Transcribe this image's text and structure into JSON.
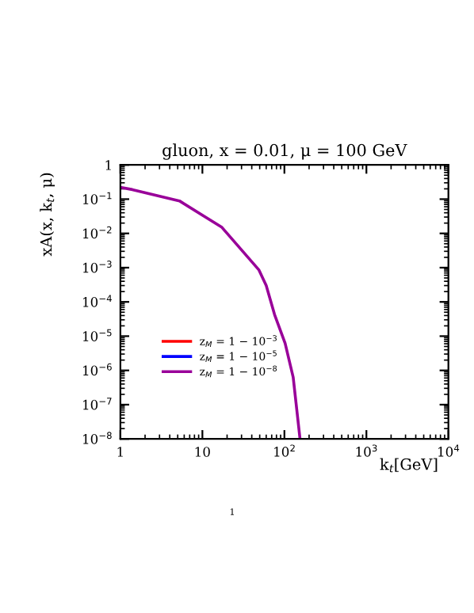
{
  "chart_data": {
    "type": "line",
    "title": "gluon, x = 0.01, μ = 100 GeV",
    "xlabel": "k$_{t}$[GeV]",
    "ylabel": "xA(x, k$_{t}$, μ)",
    "x": [
      1,
      1.4,
      5.25,
      17.3,
      48.7,
      60,
      75.8,
      102,
      128,
      155
    ],
    "series": [
      {
        "name": "z$_{M}$ = 1 − 10$^{−3}$",
        "color": "#ff0000",
        "values": [
          null,
          null,
          null,
          null,
          null,
          null,
          null,
          null,
          null,
          null
        ]
      },
      {
        "name": "z$_{M}$ = 1 − 10$^{−5}$",
        "color": "#0000ff",
        "values": [
          null,
          null,
          null,
          null,
          null,
          null,
          null,
          null,
          null,
          null
        ]
      },
      {
        "name": "z$_{M}$ = 1 − 10$^{−8}$",
        "color": "#990099",
        "values": [
          0.22,
          0.19,
          0.089,
          0.015,
          0.00087,
          0.0003,
          4.3e-05,
          6.2e-06,
          6.3e-07,
          1e-08
        ]
      }
    ],
    "log": "xy",
    "xlim": [
      1,
      10000
    ],
    "ylim": [
      1e-08,
      1
    ],
    "xticks": [
      1,
      10,
      {
        "value": 100,
        "label": "10$^{2}$"
      },
      {
        "value": 1000,
        "label": "10$^{3}$"
      },
      {
        "value": 10000,
        "label": "10$^{4}$"
      }
    ],
    "yticks": [
      {
        "value": 1e-08,
        "label": "10$^{−8}$"
      },
      {
        "value": 1e-07,
        "label": "10$^{−7}$"
      },
      {
        "value": 1e-06,
        "label": "10$^{−6}$"
      },
      {
        "value": 1e-05,
        "label": "10$^{−5}$"
      },
      {
        "value": 0.0001,
        "label": "10$^{−4}$"
      },
      {
        "value": 0.001,
        "label": "10$^{−3}$"
      },
      {
        "value": 0.01,
        "label": "10$^{−2}$"
      },
      {
        "value": 0.1,
        "label": "10$^{−1}$"
      },
      1
    ],
    "legend": "left",
    "grid": false,
    "marker": "none",
    "line_style": "solid",
    "annotations": [
      "1"
    ]
  }
}
